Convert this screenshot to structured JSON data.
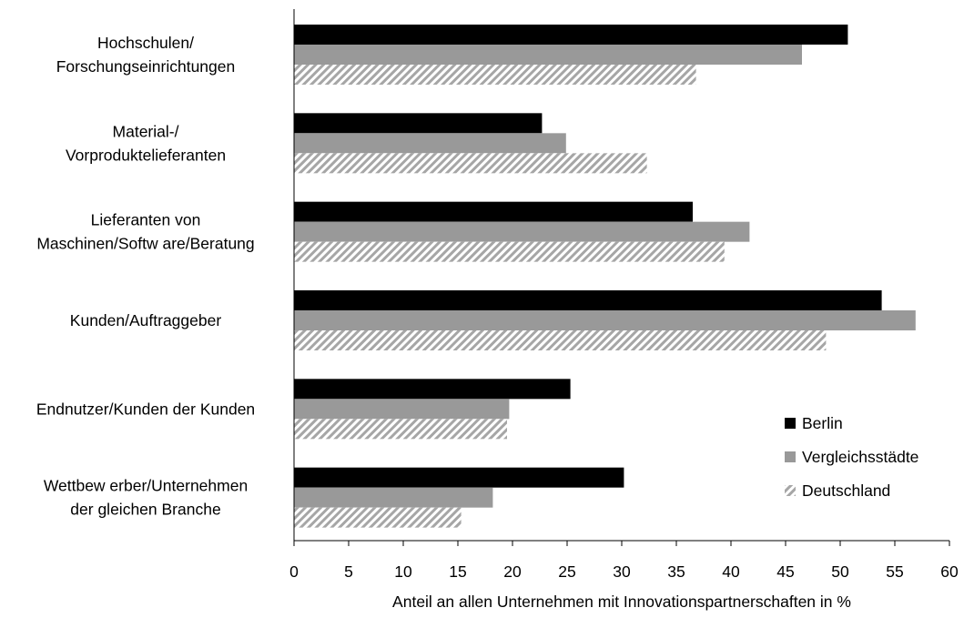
{
  "chart_data": {
    "type": "bar",
    "orientation": "horizontal",
    "categories": [
      [
        "Hochschulen/",
        "Forschungseinrichtungen"
      ],
      [
        "Material-/",
        "Vorproduktelieferanten"
      ],
      [
        "Lieferanten von",
        "Maschinen/Softw are/Beratung"
      ],
      [
        "Kunden/Auftraggeber"
      ],
      [
        "Endnutzer/Kunden der Kunden"
      ],
      [
        "Wettbew erber/Unternehmen",
        "der gleichen Branche"
      ]
    ],
    "series": [
      {
        "name": "Berlin",
        "color": "#000000",
        "pattern": "solid",
        "values": [
          50.7,
          22.7,
          36.5,
          53.8,
          25.3,
          30.2
        ]
      },
      {
        "name": "Vergleichsstädte",
        "color": "#999999",
        "pattern": "solid",
        "values": [
          46.5,
          24.9,
          41.7,
          56.9,
          19.7,
          18.2
        ]
      },
      {
        "name": "Deutschland",
        "color": "#a6a6a6",
        "pattern": "hatched",
        "values": [
          36.8,
          32.3,
          39.4,
          48.7,
          19.5,
          15.3
        ]
      }
    ],
    "xlabel": "Anteil an allen Unternehmen mit Innovationspartnerschaften in %",
    "xlim": [
      0,
      60
    ],
    "xticks": [
      "0",
      "5",
      "10",
      "15",
      "20",
      "25",
      "30",
      "35",
      "40",
      "45",
      "50",
      "55",
      "60"
    ],
    "grid": false,
    "legend_position": "bottom-right"
  }
}
